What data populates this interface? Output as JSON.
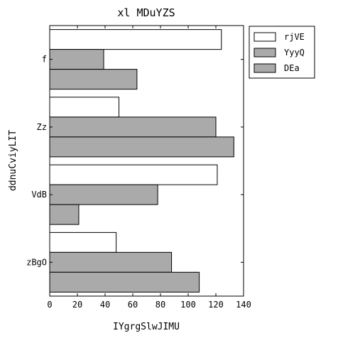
{
  "chart_data": {
    "type": "bar",
    "orientation": "horizontal",
    "title": "xl MDuYZS",
    "xlabel": "IYgrgSlwJIMU",
    "ylabel": "ddnuCviyLIT",
    "categories": [
      "f",
      "Zz",
      "VdB",
      "zBgO"
    ],
    "xlim": [
      0,
      140
    ],
    "xticks": [
      0,
      20,
      40,
      60,
      80,
      100,
      120,
      140
    ],
    "legend_position": "top-right",
    "grid": false,
    "series": [
      {
        "name": "rjVE",
        "color": "#ffffff",
        "values": [
          124,
          50,
          121,
          48
        ]
      },
      {
        "name": "YyyQ",
        "color": "#aaaaaa",
        "values": [
          39,
          120,
          78,
          88
        ]
      },
      {
        "name": "DEa",
        "color": "#aaaaaa",
        "values": [
          63,
          133,
          21,
          108
        ]
      }
    ]
  }
}
